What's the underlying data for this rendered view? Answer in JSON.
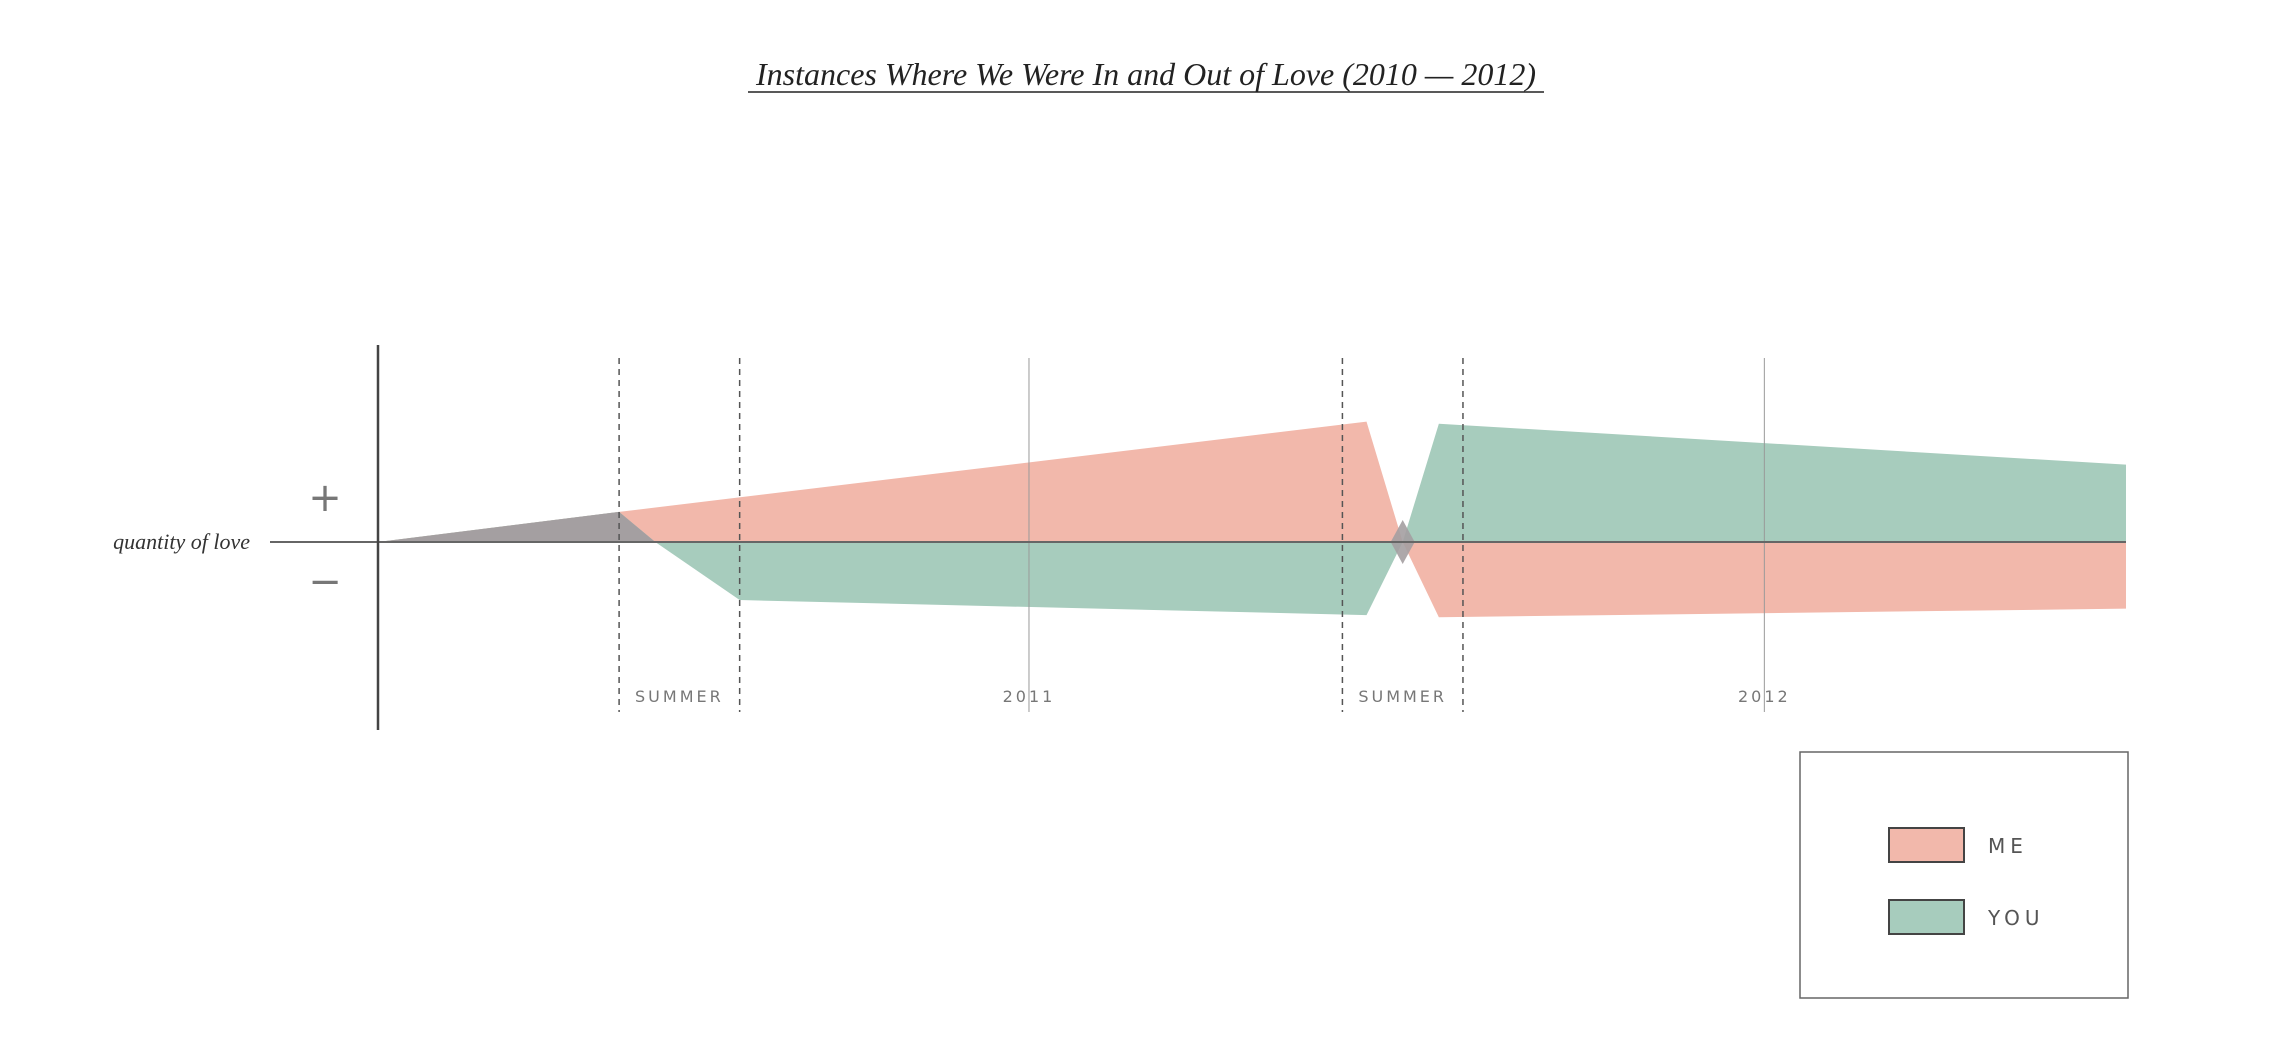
{
  "chart_data": {
    "type": "area",
    "title": "Instances Where We Were In and Out of Love (2010 — 2012)",
    "ylabel": "quantity of love",
    "y_positive_label": "+",
    "y_negative_label": "−",
    "xlim": [
      0,
      12
    ],
    "ylim": [
      -4,
      4
    ],
    "x_ticks": [
      {
        "x": 2,
        "label": "",
        "style": "dashed"
      },
      {
        "x": 3,
        "label": "",
        "style": "dashed"
      },
      {
        "x": 5.4,
        "label": "2011",
        "style": "solid"
      },
      {
        "x": 8,
        "label": "",
        "style": "dashed"
      },
      {
        "x": 9,
        "label": "",
        "style": "dashed"
      },
      {
        "x": 11.5,
        "label": "2012",
        "style": "solid"
      }
    ],
    "x_bands": [
      {
        "from": 2,
        "to": 3,
        "label": "SUMMER"
      },
      {
        "from": 8,
        "to": 9,
        "label": "SUMMER"
      }
    ],
    "series": [
      {
        "name": "ME",
        "color": "#f2b8ab",
        "x": [
          0,
          2,
          8.2,
          8.5,
          8.8,
          14.5
        ],
        "y": [
          0,
          0.7,
          2.8,
          0,
          -1.75,
          -1.55
        ]
      },
      {
        "name": "YOU",
        "color": "#a7ccbd",
        "x": [
          0,
          2,
          2.3,
          3,
          8.2,
          8.5,
          8.8,
          14.5
        ],
        "y": [
          0,
          0.7,
          0,
          -1.35,
          -1.7,
          0,
          2.75,
          1.8
        ]
      }
    ],
    "overlap_color": "#a49fa1",
    "legend_position": "bottom-right",
    "grid": false
  }
}
